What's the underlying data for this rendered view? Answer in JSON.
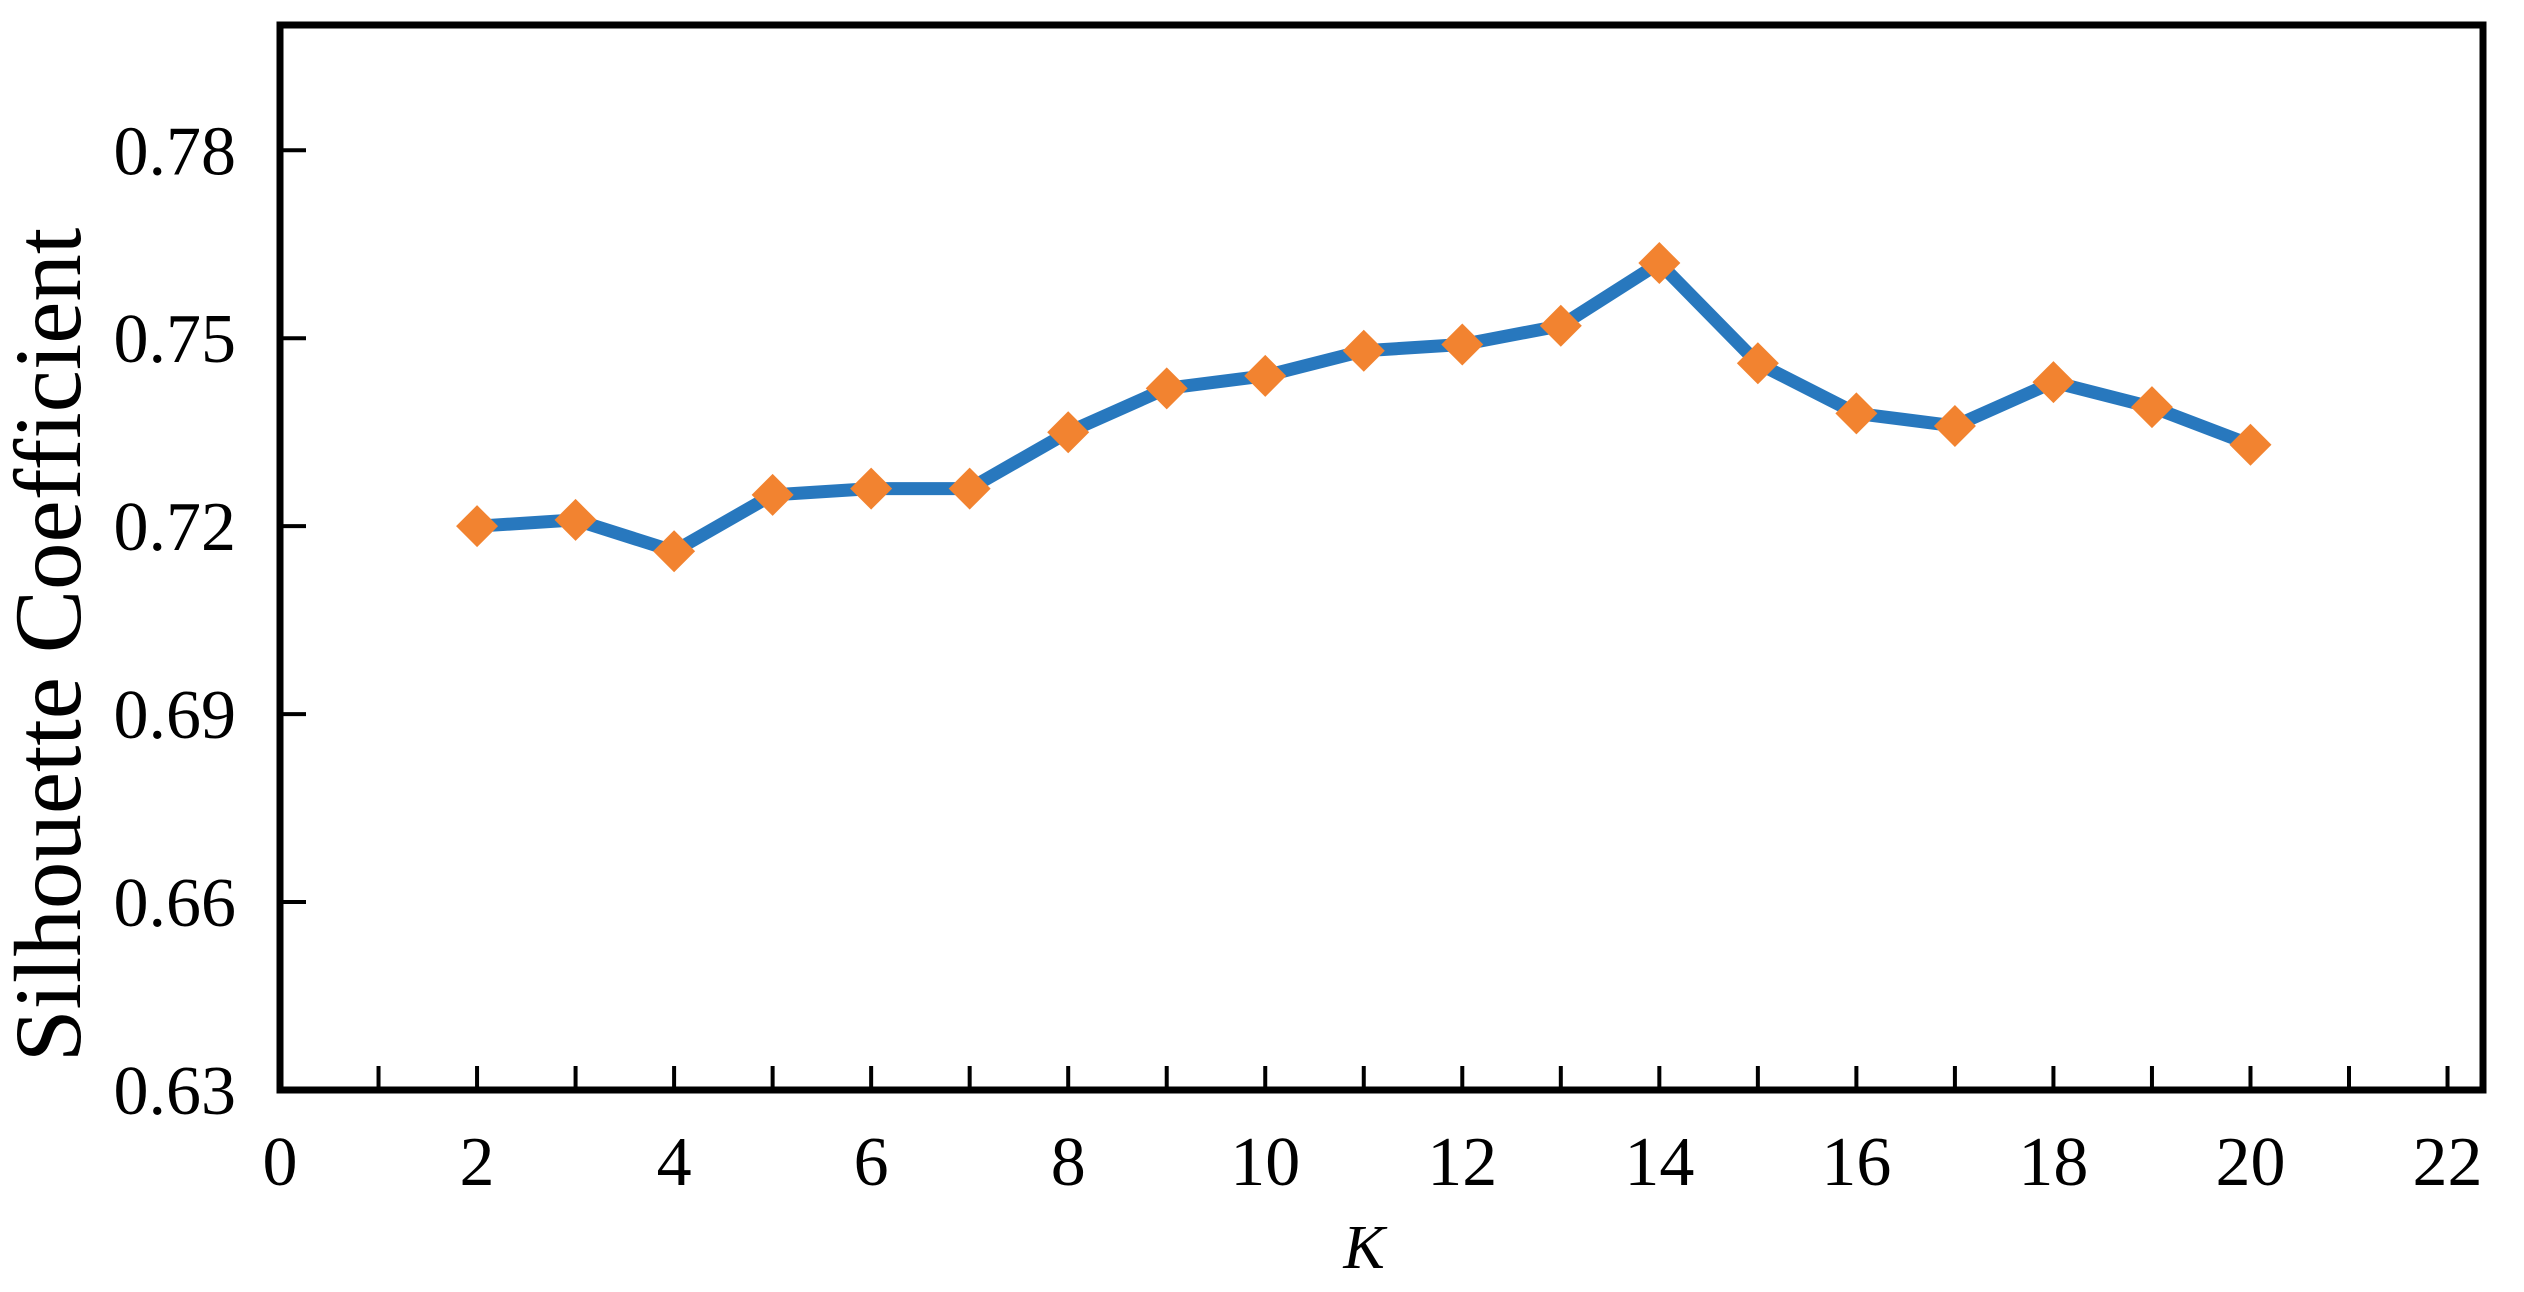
{
  "chart_data": {
    "type": "line",
    "title": "",
    "xlabel": "K",
    "ylabel": "Silhouette Coefficient",
    "x": [
      2,
      3,
      4,
      5,
      6,
      7,
      8,
      9,
      10,
      11,
      12,
      13,
      14,
      15,
      16,
      17,
      18,
      19,
      20
    ],
    "values": [
      0.72,
      0.721,
      0.716,
      0.725,
      0.726,
      0.726,
      0.735,
      0.742,
      0.744,
      0.748,
      0.749,
      0.752,
      0.762,
      0.746,
      0.738,
      0.736,
      0.743,
      0.739,
      0.733
    ],
    "xlim": [
      0,
      22.36
    ],
    "ylim": [
      0.63,
      0.8
    ],
    "x_major_tick_values": [
      0,
      2,
      4,
      6,
      8,
      10,
      12,
      14,
      16,
      18,
      20,
      22
    ],
    "x_major_tick_labels": [
      "0",
      "2",
      "4",
      "6",
      "8",
      "10",
      "12",
      "14",
      "16",
      "18",
      "20",
      "22"
    ],
    "x_minor_tick_values": [
      1,
      2,
      3,
      4,
      5,
      6,
      7,
      8,
      9,
      10,
      11,
      12,
      13,
      14,
      15,
      16,
      17,
      18,
      19,
      20,
      21,
      22
    ],
    "y_tick_values": [
      0.63,
      0.66,
      0.69,
      0.72,
      0.75,
      0.78
    ],
    "y_tick_labels": [
      "0.63",
      "0.66",
      "0.69",
      "0.72",
      "0.75",
      "0.78"
    ],
    "grid": "off",
    "legend": "none",
    "marker_shape": "diamond",
    "line_color": "#2878BE",
    "marker_color": "#F28330",
    "axis_color": "#000000",
    "background_color": "#FFFFFF"
  }
}
